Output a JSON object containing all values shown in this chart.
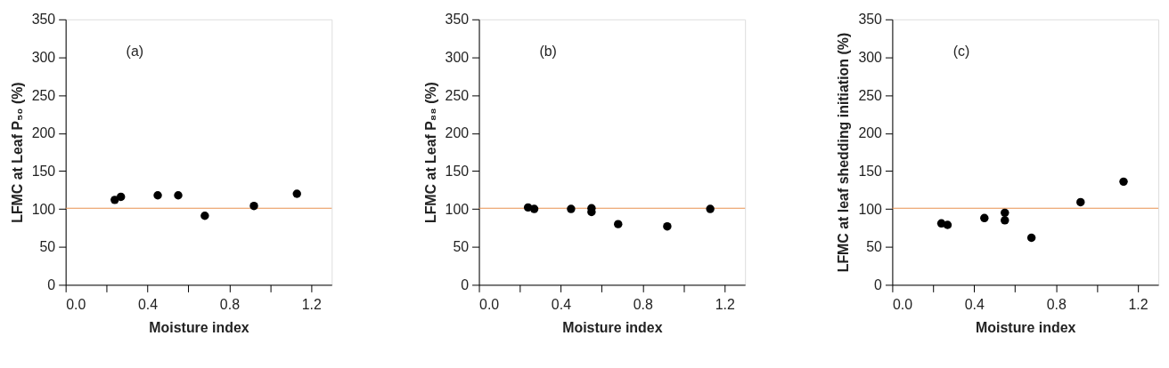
{
  "chart_data": [
    {
      "type": "scatter",
      "xlabel": "Moisture index",
      "ylabel": "LFMC at Leaf P₅₀ (%)",
      "annotations": [
        "(a)"
      ],
      "marker": "circle",
      "grid": false,
      "xlim": [
        0,
        1.3
      ],
      "ylim": [
        0,
        350
      ],
      "xticks": [
        {
          "value": 0,
          "label": "0.0"
        },
        {
          "value": 0.2,
          "label": null
        },
        0.4,
        {
          "value": 0.6,
          "label": null
        },
        0.8,
        {
          "value": 1.0,
          "label": null
        },
        1.2
      ],
      "yticks": [
        0,
        50,
        100,
        150,
        200,
        250,
        300,
        350
      ],
      "ref_lines": [
        {
          "axis": "y",
          "value": 101,
          "color": "#e8914f"
        }
      ],
      "series": [
        {
          "color": "#000000",
          "x": [
            0.24,
            0.27,
            0.45,
            0.55,
            0.68,
            0.92,
            1.13
          ],
          "values": [
            112,
            116,
            118,
            118,
            91,
            104,
            120
          ]
        }
      ]
    },
    {
      "type": "scatter",
      "xlabel": "Moisture index",
      "ylabel": "LFMC at Leaf P₈₈ (%)",
      "annotations": [
        "(b)"
      ],
      "marker": "circle",
      "grid": false,
      "xlim": [
        0,
        1.3
      ],
      "ylim": [
        0,
        350
      ],
      "xticks": [
        {
          "value": 0,
          "label": "0.0"
        },
        {
          "value": 0.2,
          "label": null
        },
        0.4,
        {
          "value": 0.6,
          "label": null
        },
        0.8,
        {
          "value": 1.0,
          "label": null
        },
        1.2
      ],
      "yticks": [
        0,
        50,
        100,
        150,
        200,
        250,
        300,
        350
      ],
      "ref_lines": [
        {
          "axis": "y",
          "value": 101,
          "color": "#e8914f"
        }
      ],
      "series": [
        {
          "color": "#000000",
          "x": [
            0.24,
            0.27,
            0.45,
            0.55,
            0.55,
            0.68,
            0.92,
            1.13
          ],
          "values": [
            102,
            100,
            100,
            101,
            96,
            80,
            77,
            100
          ]
        }
      ]
    },
    {
      "type": "scatter",
      "xlabel": "Moisture index",
      "ylabel": "LFMC at leaf shedding initiation (%)",
      "annotations": [
        "(c)"
      ],
      "marker": "circle",
      "grid": false,
      "xlim": [
        0,
        1.3
      ],
      "ylim": [
        0,
        350
      ],
      "xticks": [
        {
          "value": 0,
          "label": "0.0"
        },
        {
          "value": 0.2,
          "label": null
        },
        0.4,
        {
          "value": 0.6,
          "label": null
        },
        0.8,
        {
          "value": 1.0,
          "label": null
        },
        1.2
      ],
      "yticks": [
        0,
        50,
        100,
        150,
        200,
        250,
        300,
        350
      ],
      "ref_lines": [
        {
          "axis": "y",
          "value": 101,
          "color": "#e8914f"
        }
      ],
      "series": [
        {
          "color": "#000000",
          "x": [
            0.24,
            0.27,
            0.45,
            0.55,
            0.55,
            0.68,
            0.92,
            1.13
          ],
          "values": [
            81,
            79,
            88,
            95,
            85,
            62,
            109,
            136
          ]
        }
      ]
    }
  ]
}
